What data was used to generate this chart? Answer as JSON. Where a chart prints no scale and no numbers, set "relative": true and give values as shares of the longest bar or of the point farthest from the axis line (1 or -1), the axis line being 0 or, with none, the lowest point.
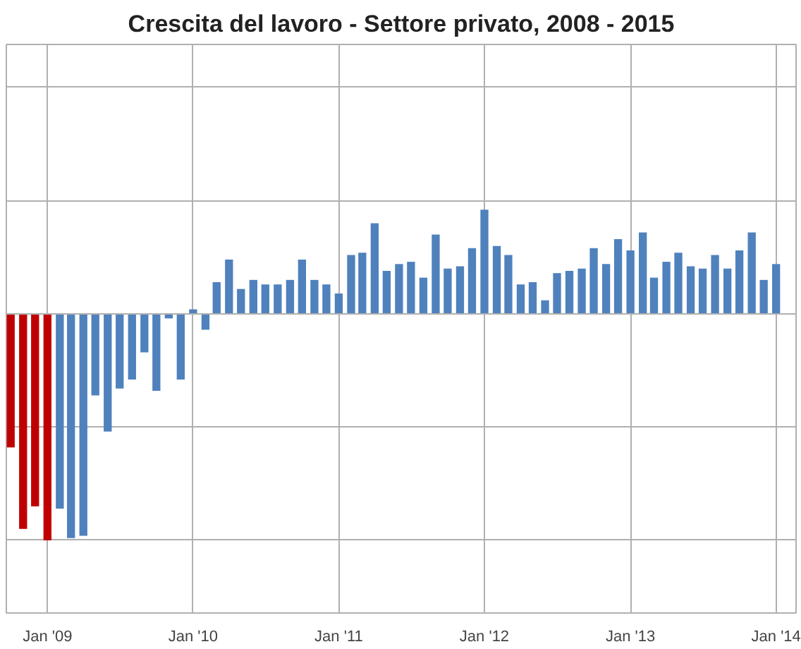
{
  "chart_data": {
    "type": "bar",
    "title": "Crescita del lavoro - Settore privato, 2008 - 2015",
    "relative": true,
    "grid": true,
    "x": [
      "2008-10",
      "2008-11",
      "2008-12",
      "2009-01",
      "2009-02",
      "2009-03",
      "2009-04",
      "2009-05",
      "2009-06",
      "2009-07",
      "2009-08",
      "2009-09",
      "2009-10",
      "2009-11",
      "2009-12",
      "2010-01",
      "2010-02",
      "2010-03",
      "2010-04",
      "2010-05",
      "2010-06",
      "2010-07",
      "2010-08",
      "2010-09",
      "2010-10",
      "2010-11",
      "2010-12",
      "2011-01",
      "2011-02",
      "2011-03",
      "2011-04",
      "2011-05",
      "2011-06",
      "2011-07",
      "2011-08",
      "2011-09",
      "2011-10",
      "2011-11",
      "2011-12",
      "2012-01",
      "2012-02",
      "2012-03",
      "2012-04",
      "2012-05",
      "2012-06",
      "2012-07",
      "2012-08",
      "2012-09",
      "2012-10",
      "2012-11",
      "2012-12",
      "2013-01",
      "2013-02",
      "2013-03",
      "2013-04",
      "2013-05",
      "2013-06",
      "2013-07",
      "2013-08",
      "2013-09",
      "2013-10",
      "2013-11",
      "2013-12",
      "2014-01"
    ],
    "values": [
      -0.59,
      -0.95,
      -0.85,
      -1,
      -0.86,
      -0.99,
      -0.98,
      -0.36,
      -0.52,
      -0.33,
      -0.29,
      -0.17,
      -0.34,
      -0.02,
      -0.29,
      0.02,
      -0.07,
      0.14,
      0.24,
      0.11,
      0.15,
      0.13,
      0.13,
      0.15,
      0.24,
      0.15,
      0.13,
      0.09,
      0.26,
      0.27,
      0.4,
      0.19,
      0.22,
      0.23,
      0.16,
      0.35,
      0.2,
      0.21,
      0.29,
      0.46,
      0.3,
      0.26,
      0.13,
      0.14,
      0.06,
      0.18,
      0.19,
      0.2,
      0.29,
      0.22,
      0.33,
      0.28,
      0.36,
      0.16,
      0.23,
      0.27,
      0.21,
      0.2,
      0.26,
      0.2,
      0.28,
      0.36,
      0.15,
      0.22
    ],
    "colors": [
      "#c00000",
      "#c00000",
      "#c00000",
      "#c00000",
      "#4f81bd",
      "#4f81bd",
      "#4f81bd",
      "#4f81bd",
      "#4f81bd",
      "#4f81bd",
      "#4f81bd",
      "#4f81bd",
      "#4f81bd",
      "#4f81bd",
      "#4f81bd",
      "#4f81bd",
      "#4f81bd",
      "#4f81bd",
      "#4f81bd",
      "#4f81bd",
      "#4f81bd",
      "#4f81bd",
      "#4f81bd",
      "#4f81bd",
      "#4f81bd",
      "#4f81bd",
      "#4f81bd",
      "#4f81bd",
      "#4f81bd",
      "#4f81bd",
      "#4f81bd",
      "#4f81bd",
      "#4f81bd",
      "#4f81bd",
      "#4f81bd",
      "#4f81bd",
      "#4f81bd",
      "#4f81bd",
      "#4f81bd",
      "#4f81bd",
      "#4f81bd",
      "#4f81bd",
      "#4f81bd",
      "#4f81bd",
      "#4f81bd",
      "#4f81bd",
      "#4f81bd",
      "#4f81bd",
      "#4f81bd",
      "#4f81bd",
      "#4f81bd",
      "#4f81bd",
      "#4f81bd",
      "#4f81bd",
      "#4f81bd",
      "#4f81bd",
      "#4f81bd",
      "#4f81bd",
      "#4f81bd",
      "#4f81bd",
      "#4f81bd",
      "#4f81bd",
      "#4f81bd",
      "#4f81bd"
    ],
    "xlim": [
      "2008-09-20",
      "2014-02-20"
    ],
    "xticks": [
      {
        "value": "2009-01",
        "label": "Jan '09"
      },
      {
        "value": "2010-01",
        "label": "Jan '10"
      },
      {
        "value": "2011-01",
        "label": "Jan '11"
      },
      {
        "value": "2012-01",
        "label": "Jan '12"
      },
      {
        "value": "2013-01",
        "label": "Jan '13"
      },
      {
        "value": "2014-01",
        "label": "Jan '14"
      }
    ]
  }
}
